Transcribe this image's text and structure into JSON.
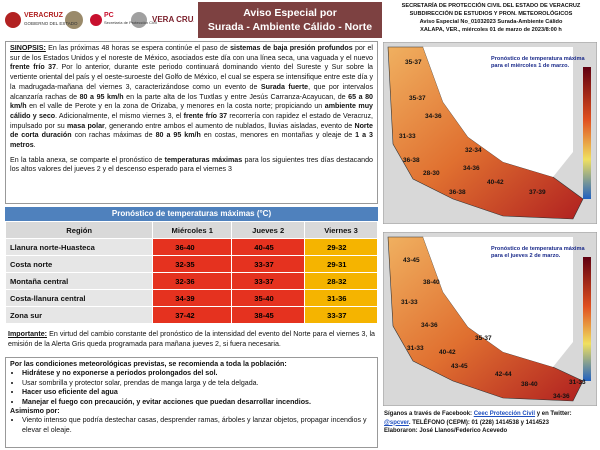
{
  "header": {
    "logos": [
      "VERACRUZ",
      "GOBIERNO DEL ESTADO",
      "PC",
      "Secretaría de Protección Civil",
      "VERA CRUZ"
    ],
    "title": [
      "Aviso Especial por",
      "Surada - Ambiente Cálido - Norte"
    ],
    "agency": [
      "SECRETARÍA DE PROTECCIÓN CIVIL DEL ESTADO DE VERACRUZ",
      "SUBDIRECCIÓN DE ESTUDIOS Y PRON. METEOROLÓGICOS",
      "Aviso Especial No_01032023 Surada-Ambiente Cálido",
      "XALAPA, VER., miércoles 01 de marzo de 2023/8:00 h"
    ]
  },
  "synopsis": [
    [
      {
        "t": "SINOPSIS:",
        "b": true,
        "u": true
      },
      {
        "t": " En las próximas 48 horas se espera continúe el paso de "
      },
      {
        "t": "sistemas de baja presión profundos",
        "b": true
      },
      {
        "t": " por el sur de los Estados Unidos y el noreste de México, asociados este día con una línea seca, una vaguada y el nuevo "
      },
      {
        "t": "frente frío 37",
        "b": true
      },
      {
        "t": ". Por lo anterior, durante este periodo continuará dominando viento del Sureste y Sur sobre la vertiente oriental del país y el oeste-suroeste del Golfo de México, el cual se espera se intensifique entre este día y la madrugada-mañana del viernes 3, caracterizándose como un evento de "
      },
      {
        "t": "Surada fuerte",
        "b": true
      },
      {
        "t": ", que por intervalos alcanzaría rachas de "
      },
      {
        "t": "80 a 95 km/h",
        "b": true
      },
      {
        "t": " en la parte alta de los Tuxtlas y entre Jesús Carranza-Acayucan, de "
      },
      {
        "t": "65 a 80 km/h",
        "b": true
      },
      {
        "t": " en el valle de Perote y en la zona de Orizaba, y menores en la costa norte; propiciando un "
      },
      {
        "t": "ambiente muy cálido y seco",
        "b": true
      },
      {
        "t": ". Adicionalmente, el mismo viernes 3, el "
      },
      {
        "t": "frente frío 37",
        "b": true
      },
      {
        "t": " recorrería con rapidez el estado de Veracruz, impulsado por su "
      },
      {
        "t": "masa polar",
        "b": true
      },
      {
        "t": ", generando entre ambos el aumento de nublados, lluvias aisladas, evento de "
      },
      {
        "t": "Norte de corta duración",
        "b": true
      },
      {
        "t": " con rachas máximas de "
      },
      {
        "t": "80 a 95 km/h",
        "b": true
      },
      {
        "t": " en costas, menores en montañas y oleaje de "
      },
      {
        "t": "1 a 3 metros",
        "b": true
      },
      {
        "t": "."
      }
    ],
    [
      {
        "t": "En la tabla anexa, se comparte el pronóstico de "
      },
      {
        "t": "temperaturas máximas",
        "b": true
      },
      {
        "t": " para los siguientes tres días destacando los altos valores del jueves 2 y el descenso esperado para el viernes 3"
      }
    ]
  ],
  "table": {
    "caption": "Pronóstico de temperaturas máximas (°C)",
    "header": [
      "Región",
      "Miércoles 1",
      "Jueves 2",
      "Viernes 3"
    ],
    "column_colors": [
      "#e6e6e6",
      "#e5321f",
      "#e5321f",
      "#f5b400"
    ],
    "rows": [
      [
        "Llanura norte-Huasteca",
        "36-40",
        "40-45",
        "29-32"
      ],
      [
        "Costa norte",
        "32-35",
        "33-37",
        "29-31"
      ],
      [
        "Montaña central",
        "32-36",
        "33-37",
        "28-32"
      ],
      [
        "Costa-llanura central",
        "34-39",
        "35-40",
        "31-36"
      ],
      [
        "Zona sur",
        "37-42",
        "38-45",
        "33-37"
      ]
    ]
  },
  "important": [
    {
      "t": "Importante:",
      "b": true,
      "u": true
    },
    {
      "t": " En virtud del cambio constante del pronóstico de la intensidad del evento del Norte para el viernes 3, la emisión de la Alerta Gris queda programada para mañana jueves 2, si fuera necesaria."
    }
  ],
  "recommendations": {
    "intro": "Por las condiciones meteorológicas previstas, se recomienda a toda la población:",
    "items": [
      {
        "t": "Hidrátese y no exponerse a periodos prolongados del sol.",
        "b": true
      },
      {
        "t": "Usar sombrilla y protector solar, prendas de manga larga y de tela delgada."
      },
      {
        "t": "Hacer uso eficiente del agua",
        "b": true
      },
      {
        "t": "Manejar el fuego con precaución, y evitar acciones que puedan desarrollar incendios.",
        "b": true
      }
    ],
    "also": "Asimismo por:",
    "also_items": [
      {
        "t": "Viento intenso que podría destechar casas, desprender ramas, árboles y lanzar objetos, propagar incendios y elevar el oleaje."
      }
    ]
  },
  "maps": [
    {
      "caption": "Pronóstico de temperatura máxima para el miércoles 1 de marzo.",
      "labels": [
        "35-37",
        "35-37",
        "34-36",
        "31-33",
        "36-38",
        "32-34",
        "28-30",
        "34-36",
        "40-42",
        "37-39",
        "36-38"
      ]
    },
    {
      "caption": "Pronóstico de temperatura máxima para el jueves 2 de marzo.",
      "labels": [
        "43-45",
        "38-40",
        "31-33",
        "34-36",
        "31-33",
        "40-42",
        "35-37",
        "43-45",
        "42-44",
        "38-40",
        "31-33",
        "34-36"
      ]
    }
  ],
  "footer": [
    [
      {
        "t": "Síganos a través de Facebook: ",
        "b": true
      },
      {
        "t": "Ceec Protección Civil",
        "b": true,
        "link": true
      },
      {
        "t": " y en Twitter: ",
        "b": true
      },
      {
        "t": "@spcver",
        "b": true,
        "link": true
      },
      {
        "t": ". TELÉFONO (CEPM): 01 (228) 1414538 y 1414523",
        "b": true
      }
    ],
    [
      {
        "t": "Elaboraron: José Llanos/Federico Acevedo",
        "b": true
      }
    ]
  ]
}
